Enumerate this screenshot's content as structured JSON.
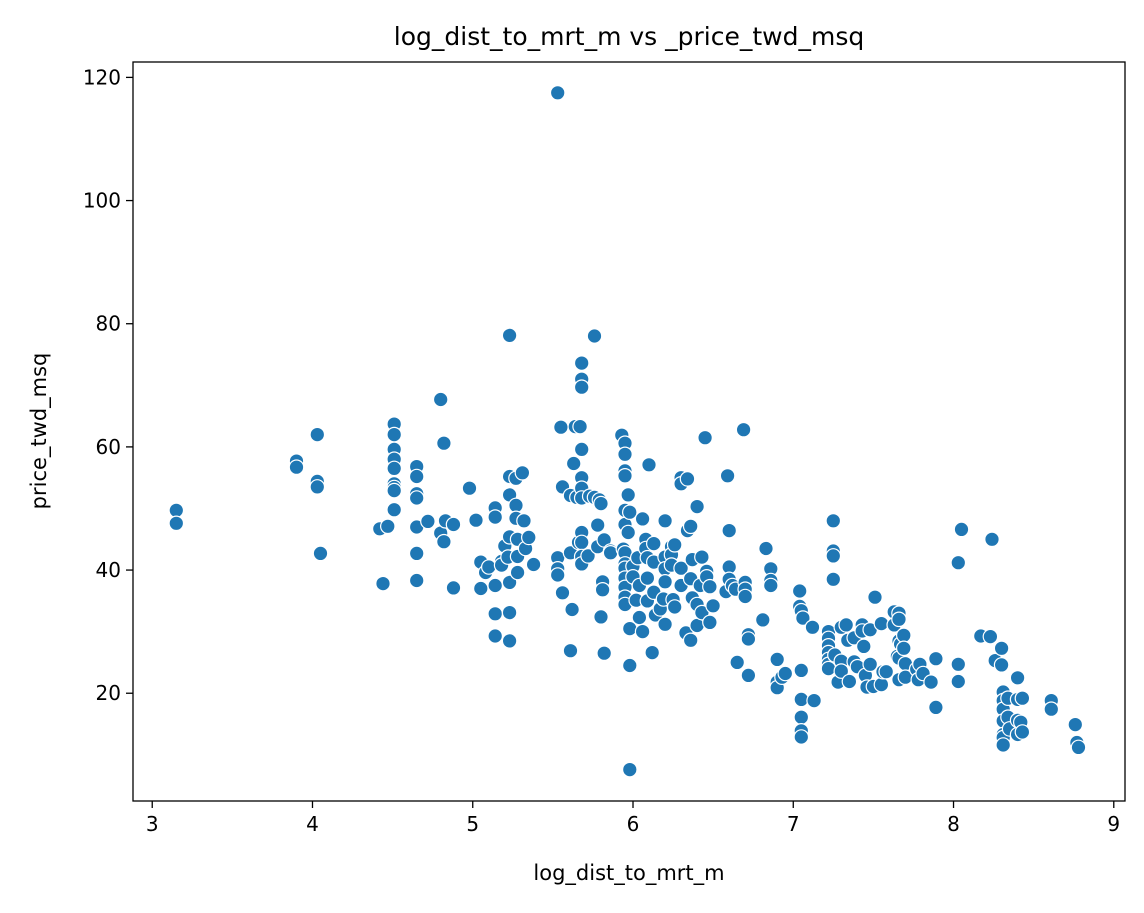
{
  "chart_data": {
    "type": "scatter",
    "title": "log_dist_to_mrt_m vs _price_twd_msq",
    "xlabel": "log_dist_to_mrt_m",
    "ylabel": "price_twd_msq",
    "xlim": [
      2.88,
      9.07
    ],
    "ylim": [
      2.5,
      122.5
    ],
    "xticks": [
      3,
      4,
      5,
      6,
      7,
      8,
      9
    ],
    "yticks": [
      20,
      40,
      60,
      80,
      100,
      120
    ],
    "grid": false,
    "legend": "none",
    "marker_color": "#1f77b4",
    "points": [
      [
        3.15,
        49.7
      ],
      [
        3.15,
        47.6
      ],
      [
        3.9,
        57.7
      ],
      [
        3.9,
        56.7
      ],
      [
        4.03,
        62.0
      ],
      [
        4.03,
        54.4
      ],
      [
        4.03,
        53.5
      ],
      [
        4.05,
        42.7
      ],
      [
        4.42,
        46.7
      ],
      [
        4.44,
        37.8
      ],
      [
        4.47,
        47.1
      ],
      [
        4.51,
        63.7
      ],
      [
        4.51,
        62.0
      ],
      [
        4.51,
        59.6
      ],
      [
        4.51,
        58.0
      ],
      [
        4.51,
        56.5
      ],
      [
        4.51,
        54.0
      ],
      [
        4.51,
        53.4
      ],
      [
        4.51,
        52.9
      ],
      [
        4.51,
        49.8
      ],
      [
        4.65,
        56.8
      ],
      [
        4.65,
        55.2
      ],
      [
        4.65,
        52.4
      ],
      [
        4.65,
        51.7
      ],
      [
        4.65,
        47.0
      ],
      [
        4.65,
        42.7
      ],
      [
        4.65,
        38.3
      ],
      [
        4.72,
        47.9
      ],
      [
        4.8,
        67.7
      ],
      [
        4.8,
        46.0
      ],
      [
        4.82,
        60.6
      ],
      [
        4.82,
        44.6
      ],
      [
        4.83,
        48.0
      ],
      [
        4.88,
        47.4
      ],
      [
        4.88,
        37.1
      ],
      [
        4.98,
        53.3
      ],
      [
        5.02,
        48.1
      ],
      [
        5.05,
        41.3
      ],
      [
        5.05,
        37.0
      ],
      [
        5.08,
        39.6
      ],
      [
        5.1,
        40.5
      ],
      [
        5.14,
        50.1
      ],
      [
        5.14,
        48.6
      ],
      [
        5.14,
        37.5
      ],
      [
        5.14,
        32.9
      ],
      [
        5.14,
        29.3
      ],
      [
        5.18,
        41.4
      ],
      [
        5.18,
        40.8
      ],
      [
        5.2,
        43.9
      ],
      [
        5.22,
        42.1
      ],
      [
        5.23,
        78.1
      ],
      [
        5.23,
        55.2
      ],
      [
        5.23,
        52.2
      ],
      [
        5.23,
        45.4
      ],
      [
        5.23,
        38.0
      ],
      [
        5.23,
        33.1
      ],
      [
        5.23,
        28.5
      ],
      [
        5.27,
        54.9
      ],
      [
        5.27,
        50.5
      ],
      [
        5.27,
        48.4
      ],
      [
        5.28,
        45.0
      ],
      [
        5.28,
        42.2
      ],
      [
        5.28,
        39.6
      ],
      [
        5.31,
        55.8
      ],
      [
        5.32,
        48.0
      ],
      [
        5.33,
        43.5
      ],
      [
        5.35,
        45.3
      ],
      [
        5.38,
        40.9
      ],
      [
        5.53,
        117.5
      ],
      [
        5.53,
        42.0
      ],
      [
        5.53,
        40.2
      ],
      [
        5.53,
        39.2
      ],
      [
        5.55,
        63.2
      ],
      [
        5.56,
        53.5
      ],
      [
        5.56,
        36.3
      ],
      [
        5.61,
        52.1
      ],
      [
        5.61,
        42.8
      ],
      [
        5.61,
        26.9
      ],
      [
        5.62,
        33.6
      ],
      [
        5.63,
        57.3
      ],
      [
        5.64,
        63.3
      ],
      [
        5.65,
        51.8
      ],
      [
        5.66,
        44.5
      ],
      [
        5.67,
        63.3
      ],
      [
        5.68,
        73.6
      ],
      [
        5.68,
        71.0
      ],
      [
        5.68,
        69.7
      ],
      [
        5.68,
        59.6
      ],
      [
        5.68,
        55.0
      ],
      [
        5.68,
        53.3
      ],
      [
        5.68,
        51.7
      ],
      [
        5.68,
        46.1
      ],
      [
        5.68,
        44.5
      ],
      [
        5.68,
        42.2
      ],
      [
        5.68,
        41.0
      ],
      [
        5.72,
        42.3
      ],
      [
        5.73,
        52.0
      ],
      [
        5.76,
        78.0
      ],
      [
        5.76,
        51.8
      ],
      [
        5.78,
        47.3
      ],
      [
        5.78,
        43.8
      ],
      [
        5.79,
        51.4
      ],
      [
        5.8,
        50.8
      ],
      [
        5.8,
        32.4
      ],
      [
        5.81,
        38.1
      ],
      [
        5.81,
        36.8
      ],
      [
        5.82,
        44.9
      ],
      [
        5.82,
        26.5
      ],
      [
        5.86,
        43.1
      ],
      [
        5.86,
        42.8
      ],
      [
        5.93,
        61.9
      ],
      [
        5.94,
        43.4
      ],
      [
        5.95,
        60.6
      ],
      [
        5.95,
        58.8
      ],
      [
        5.95,
        56.1
      ],
      [
        5.95,
        55.3
      ],
      [
        5.95,
        49.7
      ],
      [
        5.95,
        47.4
      ],
      [
        5.95,
        42.8
      ],
      [
        5.95,
        41.0
      ],
      [
        5.95,
        40.3
      ],
      [
        5.95,
        38.7
      ],
      [
        5.95,
        37.2
      ],
      [
        5.95,
        35.6
      ],
      [
        5.95,
        34.4
      ],
      [
        5.97,
        52.2
      ],
      [
        5.97,
        46.1
      ],
      [
        5.98,
        49.4
      ],
      [
        5.98,
        7.6
      ],
      [
        5.98,
        24.5
      ],
      [
        5.98,
        30.5
      ],
      [
        6.0,
        40.6
      ],
      [
        6.0,
        38.9
      ],
      [
        6.02,
        35.1
      ],
      [
        6.03,
        42.0
      ],
      [
        6.04,
        37.5
      ],
      [
        6.04,
        32.3
      ],
      [
        6.06,
        48.3
      ],
      [
        6.06,
        30.0
      ],
      [
        6.08,
        45.0
      ],
      [
        6.08,
        43.5
      ],
      [
        6.09,
        42.0
      ],
      [
        6.09,
        38.7
      ],
      [
        6.09,
        35.0
      ],
      [
        6.1,
        57.1
      ],
      [
        6.12,
        26.6
      ],
      [
        6.13,
        44.3
      ],
      [
        6.13,
        41.3
      ],
      [
        6.13,
        36.4
      ],
      [
        6.14,
        32.7
      ],
      [
        6.17,
        33.7
      ],
      [
        6.19,
        35.3
      ],
      [
        6.2,
        48.0
      ],
      [
        6.2,
        42.1
      ],
      [
        6.2,
        40.2
      ],
      [
        6.2,
        38.1
      ],
      [
        6.2,
        31.2
      ],
      [
        6.24,
        43.8
      ],
      [
        6.24,
        42.5
      ],
      [
        6.24,
        40.8
      ],
      [
        6.25,
        35.2
      ],
      [
        6.26,
        44.1
      ],
      [
        6.26,
        34.0
      ],
      [
        6.3,
        55.0
      ],
      [
        6.3,
        54.0
      ],
      [
        6.3,
        40.3
      ],
      [
        6.3,
        37.5
      ],
      [
        6.33,
        29.8
      ],
      [
        6.34,
        54.8
      ],
      [
        6.34,
        46.4
      ],
      [
        6.36,
        47.1
      ],
      [
        6.36,
        38.6
      ],
      [
        6.36,
        28.6
      ],
      [
        6.37,
        41.7
      ],
      [
        6.37,
        35.5
      ],
      [
        6.4,
        50.3
      ],
      [
        6.4,
        34.4
      ],
      [
        6.4,
        31.0
      ],
      [
        6.42,
        37.5
      ],
      [
        6.43,
        42.1
      ],
      [
        6.43,
        33.1
      ],
      [
        6.45,
        61.5
      ],
      [
        6.46,
        39.8
      ],
      [
        6.46,
        38.9
      ],
      [
        6.48,
        37.3
      ],
      [
        6.48,
        31.5
      ],
      [
        6.5,
        34.2
      ],
      [
        6.58,
        36.5
      ],
      [
        6.59,
        55.3
      ],
      [
        6.6,
        46.4
      ],
      [
        6.6,
        40.5
      ],
      [
        6.6,
        38.5
      ],
      [
        6.62,
        37.5
      ],
      [
        6.64,
        36.9
      ],
      [
        6.65,
        25.0
      ],
      [
        6.69,
        62.8
      ],
      [
        6.7,
        38.0
      ],
      [
        6.7,
        36.9
      ],
      [
        6.7,
        35.7
      ],
      [
        6.72,
        29.5
      ],
      [
        6.72,
        28.8
      ],
      [
        6.72,
        22.9
      ],
      [
        6.81,
        31.9
      ],
      [
        6.83,
        43.5
      ],
      [
        6.86,
        40.2
      ],
      [
        6.86,
        38.3
      ],
      [
        6.86,
        37.5
      ],
      [
        6.9,
        25.5
      ],
      [
        6.9,
        21.8
      ],
      [
        6.9,
        20.9
      ],
      [
        6.93,
        22.6
      ],
      [
        6.95,
        23.2
      ],
      [
        7.04,
        36.6
      ],
      [
        7.04,
        34.1
      ],
      [
        7.05,
        33.4
      ],
      [
        7.05,
        23.7
      ],
      [
        7.05,
        19.0
      ],
      [
        7.05,
        16.1
      ],
      [
        7.05,
        13.9
      ],
      [
        7.05,
        12.9
      ],
      [
        7.06,
        32.2
      ],
      [
        7.12,
        30.7
      ],
      [
        7.13,
        18.8
      ],
      [
        7.22,
        30.0
      ],
      [
        7.22,
        28.9
      ],
      [
        7.22,
        27.7
      ],
      [
        7.22,
        26.6
      ],
      [
        7.22,
        25.5
      ],
      [
        7.22,
        24.7
      ],
      [
        7.22,
        24.0
      ],
      [
        7.25,
        48.0
      ],
      [
        7.25,
        43.1
      ],
      [
        7.25,
        42.3
      ],
      [
        7.25,
        38.5
      ],
      [
        7.26,
        26.2
      ],
      [
        7.28,
        21.8
      ],
      [
        7.3,
        30.7
      ],
      [
        7.3,
        25.2
      ],
      [
        7.3,
        23.6
      ],
      [
        7.33,
        31.1
      ],
      [
        7.34,
        28.6
      ],
      [
        7.35,
        21.9
      ],
      [
        7.38,
        29.0
      ],
      [
        7.38,
        25.1
      ],
      [
        7.4,
        24.3
      ],
      [
        7.43,
        31.1
      ],
      [
        7.43,
        30.1
      ],
      [
        7.44,
        27.6
      ],
      [
        7.45,
        22.9
      ],
      [
        7.46,
        21.0
      ],
      [
        7.48,
        30.3
      ],
      [
        7.48,
        24.7
      ],
      [
        7.5,
        21.1
      ],
      [
        7.51,
        35.6
      ],
      [
        7.55,
        31.3
      ],
      [
        7.55,
        21.4
      ],
      [
        7.56,
        23.5
      ],
      [
        7.58,
        23.5
      ],
      [
        7.63,
        33.2
      ],
      [
        7.63,
        31.1
      ],
      [
        7.65,
        26.0
      ],
      [
        7.66,
        33.0
      ],
      [
        7.66,
        32.0
      ],
      [
        7.66,
        28.5
      ],
      [
        7.66,
        25.7
      ],
      [
        7.66,
        22.2
      ],
      [
        7.67,
        28.0
      ],
      [
        7.69,
        29.4
      ],
      [
        7.69,
        27.3
      ],
      [
        7.7,
        24.8
      ],
      [
        7.7,
        22.6
      ],
      [
        7.77,
        23.9
      ],
      [
        7.78,
        22.2
      ],
      [
        7.79,
        24.7
      ],
      [
        7.81,
        23.2
      ],
      [
        7.86,
        21.8
      ],
      [
        7.89,
        25.6
      ],
      [
        7.89,
        17.7
      ],
      [
        8.03,
        41.2
      ],
      [
        8.03,
        24.7
      ],
      [
        8.03,
        21.9
      ],
      [
        8.05,
        46.6
      ],
      [
        8.17,
        29.3
      ],
      [
        8.23,
        29.2
      ],
      [
        8.24,
        45.0
      ],
      [
        8.26,
        25.3
      ],
      [
        8.3,
        27.3
      ],
      [
        8.3,
        24.6
      ],
      [
        8.31,
        20.2
      ],
      [
        8.31,
        18.8
      ],
      [
        8.31,
        17.4
      ],
      [
        8.31,
        15.5
      ],
      [
        8.31,
        13.3
      ],
      [
        8.31,
        12.8
      ],
      [
        8.31,
        11.6
      ],
      [
        8.34,
        19.2
      ],
      [
        8.34,
        16.1
      ],
      [
        8.35,
        14.2
      ],
      [
        8.4,
        22.5
      ],
      [
        8.4,
        19.0
      ],
      [
        8.4,
        15.6
      ],
      [
        8.4,
        13.3
      ],
      [
        8.42,
        15.3
      ],
      [
        8.43,
        19.2
      ],
      [
        8.43,
        13.7
      ],
      [
        8.61,
        18.8
      ],
      [
        8.61,
        17.4
      ],
      [
        8.76,
        14.9
      ],
      [
        8.77,
        12.0
      ],
      [
        8.78,
        11.2
      ]
    ]
  }
}
